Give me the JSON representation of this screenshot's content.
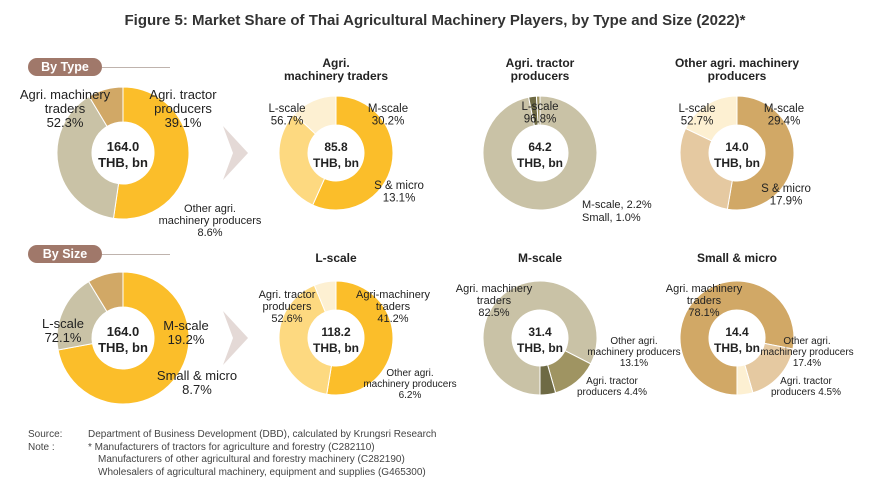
{
  "title": "Figure 5: Market Share of Thai Agricultural Machinery Players, by Type and Size (2022)*",
  "section_labels": {
    "by_type": "By Type",
    "by_size": "By Size"
  },
  "colors": {
    "gold": "#fbbe2a",
    "light_gold": "#fdd980",
    "cream": "#fdf0d2",
    "taupe": "#c9c2a6",
    "olive": "#9f9462",
    "dark_olive": "#6e6a44",
    "tan": "#d1a866",
    "sand": "#e5c9a1",
    "brown_pill": "#a0786a",
    "arrow": "#e4d9d6"
  },
  "chart_data": [
    {
      "type": "pie",
      "title": "",
      "center": [
        "164.0",
        "THB, bn"
      ],
      "series": [
        {
          "name": "Agri. machinery traders",
          "value": 52.3,
          "label": "52.3%"
        },
        {
          "name": "Agri. tractor producers",
          "value": 39.1,
          "label": "39.1%"
        },
        {
          "name": "Other agri. machinery producers",
          "value": 8.6,
          "label": "8.6%"
        }
      ]
    },
    {
      "type": "pie",
      "title": "Agri. machinery traders",
      "center": [
        "85.8",
        "THB, bn"
      ],
      "series": [
        {
          "name": "L-scale",
          "value": 56.7,
          "label": "56.7%"
        },
        {
          "name": "M-scale",
          "value": 30.2,
          "label": "30.2%"
        },
        {
          "name": "S & micro",
          "value": 13.1,
          "label": "13.1%"
        }
      ]
    },
    {
      "type": "pie",
      "title": "Agri. tractor producers",
      "center": [
        "64.2",
        "THB, bn"
      ],
      "series": [
        {
          "name": "L-scale",
          "value": 96.8,
          "label": "96.8%"
        },
        {
          "name": "M-scale",
          "value": 2.2,
          "label": "M-scale, 2.2%"
        },
        {
          "name": "Small",
          "value": 1.0,
          "label": "Small, 1.0%"
        }
      ]
    },
    {
      "type": "pie",
      "title": "Other agri. machinery producers",
      "center": [
        "14.0",
        "THB, bn"
      ],
      "series": [
        {
          "name": "L-scale",
          "value": 52.7,
          "label": "52.7%"
        },
        {
          "name": "M-scale",
          "value": 29.4,
          "label": "29.4%"
        },
        {
          "name": "S & micro",
          "value": 17.9,
          "label": "17.9%"
        }
      ]
    },
    {
      "type": "pie",
      "title": "",
      "center": [
        "164.0",
        "THB, bn"
      ],
      "series": [
        {
          "name": "L-scale",
          "value": 72.1,
          "label": "72.1%"
        },
        {
          "name": "M-scale",
          "value": 19.2,
          "label": "19.2%"
        },
        {
          "name": "Small & micro",
          "value": 8.7,
          "label": "8.7%"
        }
      ]
    },
    {
      "type": "pie",
      "title": "L-scale",
      "center": [
        "118.2",
        "THB, bn"
      ],
      "series": [
        {
          "name": "Agri. tractor producers",
          "value": 52.6,
          "label": "52.6%"
        },
        {
          "name": "Agri-machinery traders",
          "value": 41.2,
          "label": "41.2%"
        },
        {
          "name": "Other agri. machinery producers",
          "value": 6.2,
          "label": "6.2%"
        }
      ]
    },
    {
      "type": "pie",
      "title": "M-scale",
      "center": [
        "31.4",
        "THB, bn"
      ],
      "series": [
        {
          "name": "Agri. machinery traders",
          "value": 82.5,
          "label": "82.5%"
        },
        {
          "name": "Other agri. machinery producers",
          "value": 13.1,
          "label": "13.1%"
        },
        {
          "name": "Agri. tractor producers",
          "value": 4.4,
          "label": "4.4%"
        }
      ]
    },
    {
      "type": "pie",
      "title": "Small & micro",
      "center": [
        "14.4",
        "THB, bn"
      ],
      "series": [
        {
          "name": "Agri. machinery traders",
          "value": 78.1,
          "label": "78.1%"
        },
        {
          "name": "Other agri. machinery producers",
          "value": 17.4,
          "label": "17.4%"
        },
        {
          "name": "Agri. tractor producers",
          "value": 4.5,
          "label": "4.5%"
        }
      ]
    }
  ],
  "footer": {
    "source_label": "Source:",
    "source_text": "Department of Business Development (DBD), calculated by Krungsri Research",
    "note_label": "Note :",
    "notes": [
      "* Manufacturers of tractors for agriculture and forestry (C282110)",
      "Manufacturers of other agricultural and forestry machinery (C282190)",
      "Wholesalers of agricultural machinery, equipment and supplies (G465300)"
    ]
  }
}
